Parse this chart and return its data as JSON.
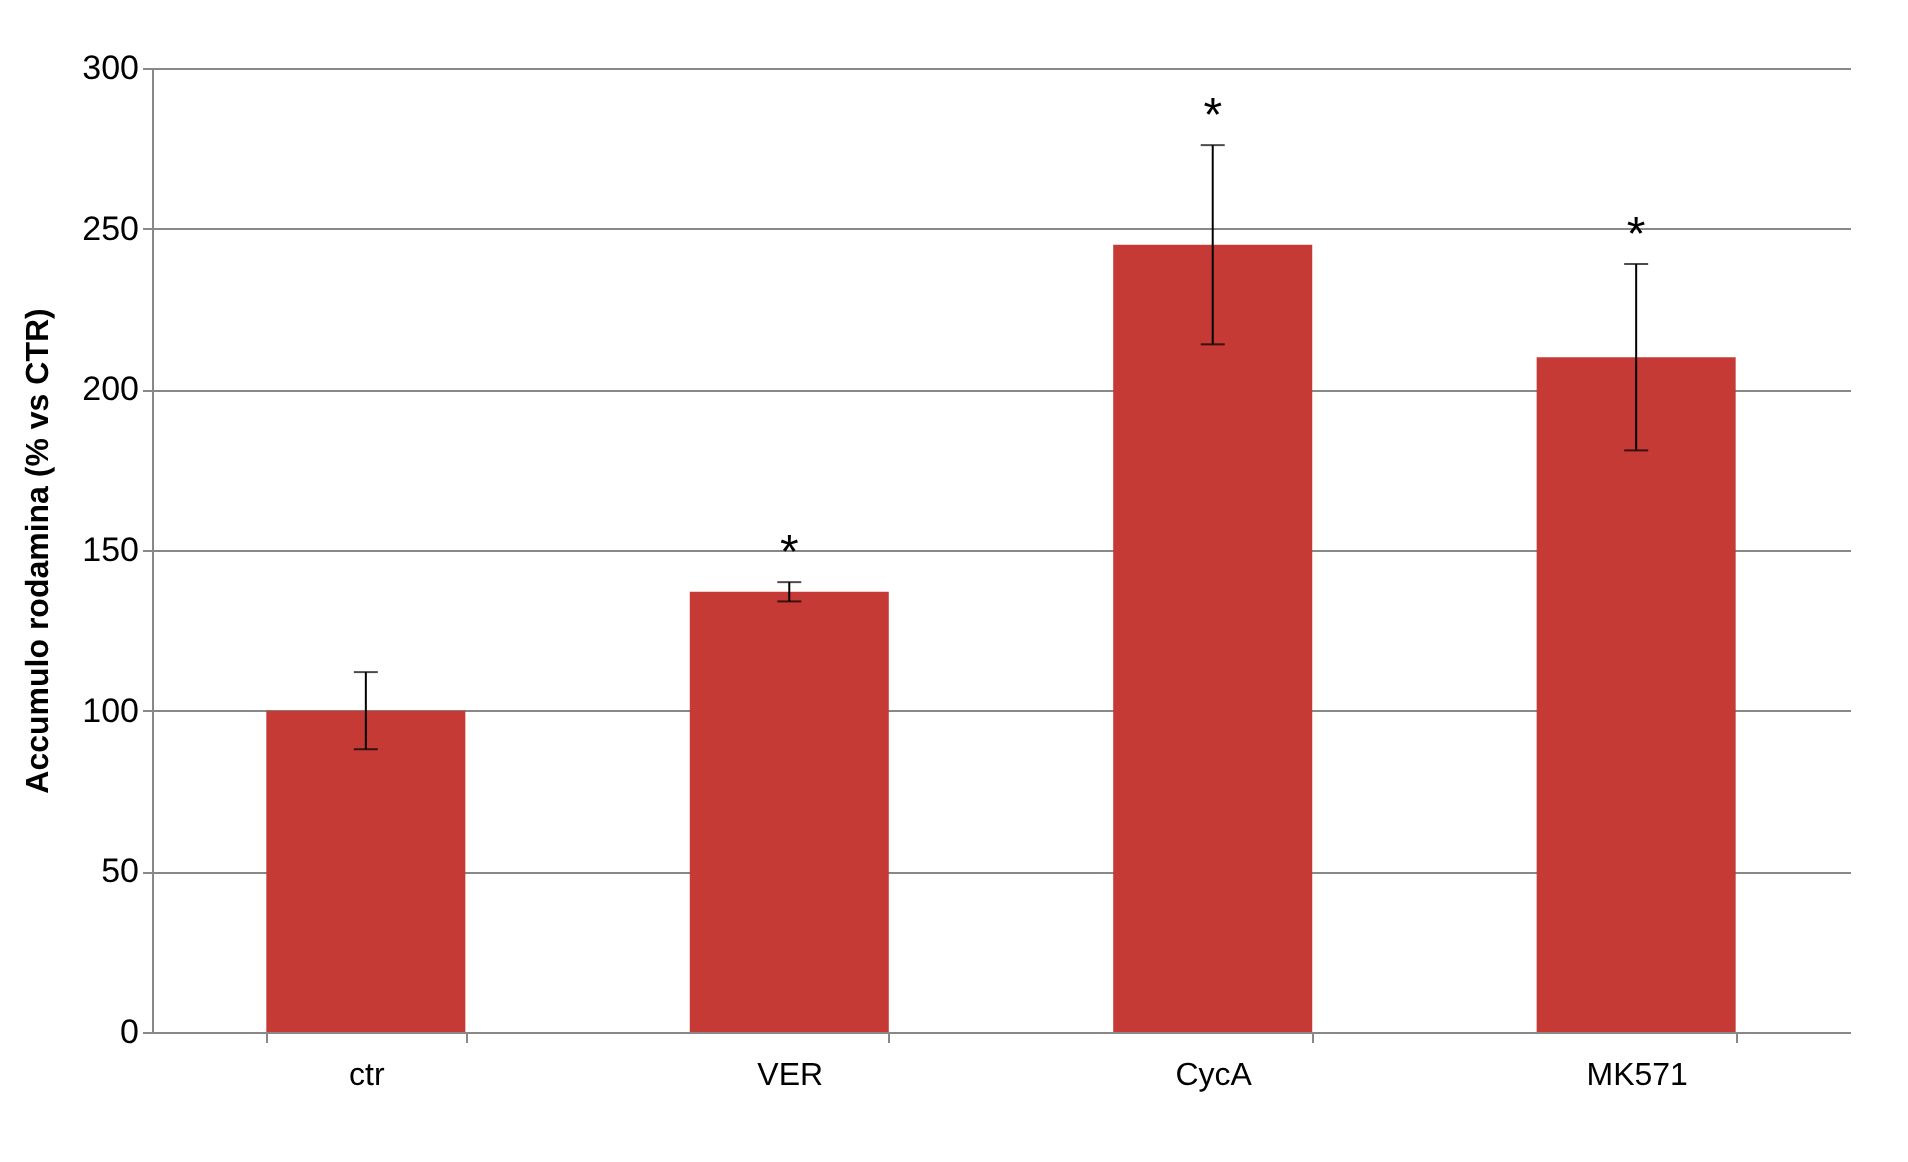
{
  "chart_data": {
    "type": "bar",
    "ylabel": "Accumulo rodamina  (% vs CTR)",
    "categories": [
      "ctr",
      "VER",
      "CycA",
      "MK571"
    ],
    "values": [
      100,
      137,
      245,
      210
    ],
    "errors": [
      12,
      3,
      31,
      29
    ],
    "color": "#c53a35",
    "ylim": [
      0,
      300
    ],
    "yticks": [
      0,
      50,
      100,
      150,
      200,
      250,
      300
    ],
    "grid": "y",
    "annotations": [
      {
        "text": "*",
        "x": "VER",
        "y": 137
      },
      {
        "text": "*",
        "x": "CycA",
        "y": 245
      },
      {
        "text": "*",
        "x": "MK571",
        "y": 210
      }
    ]
  }
}
